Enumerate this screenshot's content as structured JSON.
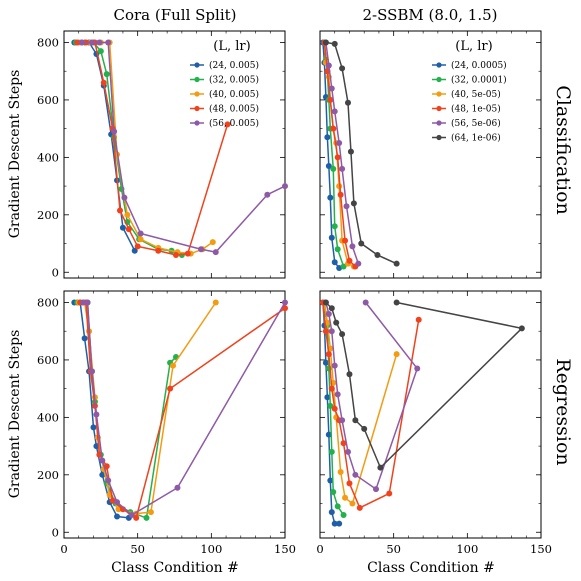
{
  "figure": {
    "col_titles": [
      "Cora (Full Split)",
      "2-SSBM (8.0, 1.5)"
    ],
    "row_titles": [
      "Classification",
      "Regression"
    ],
    "xlabel": "Class Condition #",
    "ylabel": "Gradient Descent Steps",
    "legend_title": "(L, lr)"
  },
  "chart_data": [
    {
      "type": "line",
      "title": "Cora (Full Split)",
      "row": "Classification",
      "xlabel": "",
      "ylabel": "Gradient Descent Steps",
      "xlim": [
        0,
        150
      ],
      "ylim": [
        -20,
        840
      ],
      "xticks": [
        0,
        50,
        100,
        150
      ],
      "yticks": [
        0,
        200,
        400,
        600,
        800
      ],
      "legend_title": "(L, lr)",
      "legend_position": "top-right",
      "series": [
        {
          "name": "(24, 0.005)",
          "color": "#1f5fa8",
          "x": [
            7,
            12,
            17,
            22,
            27,
            32,
            36,
            40,
            48
          ],
          "y": [
            800,
            800,
            800,
            760,
            650,
            480,
            320,
            155,
            75
          ]
        },
        {
          "name": "(32, 0.005)",
          "color": "#22b14c",
          "x": [
            8,
            14,
            20,
            25,
            29,
            34,
            39,
            43,
            51,
            64,
            73,
            80
          ],
          "y": [
            800,
            800,
            800,
            770,
            690,
            470,
            290,
            175,
            115,
            80,
            75,
            60
          ]
        },
        {
          "name": "(40, 0.005)",
          "color": "#f39c12",
          "x": [
            10,
            18,
            25,
            31,
            36,
            43,
            52,
            64,
            77,
            86,
            94,
            101
          ],
          "y": [
            800,
            800,
            800,
            800,
            410,
            200,
            115,
            85,
            70,
            65,
            80,
            105
          ]
        },
        {
          "name": "(48, 0.005)",
          "color": "#f0421c",
          "x": [
            9,
            15,
            21,
            27,
            33,
            38,
            44,
            50,
            64,
            76,
            84,
            111
          ],
          "y": [
            800,
            800,
            800,
            660,
            500,
            215,
            150,
            90,
            75,
            60,
            65,
            515
          ]
        },
        {
          "name": "(56, 0.005)",
          "color": "#8e5aa6",
          "x": [
            12,
            19,
            24,
            30,
            34,
            41,
            52,
            93,
            103,
            138,
            150
          ],
          "y": [
            800,
            800,
            800,
            800,
            490,
            260,
            135,
            80,
            70,
            270,
            300
          ]
        }
      ]
    },
    {
      "type": "line",
      "title": "2-SSBM (8.0, 1.5)",
      "row": "Classification",
      "xlabel": "",
      "ylabel": "",
      "xlim": [
        0,
        150
      ],
      "ylim": [
        -20,
        840
      ],
      "xticks": [
        0,
        50,
        100,
        150
      ],
      "yticks": [
        0,
        200,
        400,
        600,
        800
      ],
      "legend_title": "(L, lr)",
      "legend_position": "top-right",
      "series": [
        {
          "name": "(24, 0.0005)",
          "color": "#1f5fa8",
          "x": [
            2,
            3,
            4,
            5,
            6,
            7,
            8,
            10,
            13
          ],
          "y": [
            800,
            730,
            610,
            470,
            370,
            260,
            120,
            35,
            15
          ]
        },
        {
          "name": "(32, 0.0001)",
          "color": "#22b14c",
          "x": [
            3,
            4,
            5,
            6,
            7,
            9,
            10,
            12,
            16
          ],
          "y": [
            800,
            740,
            700,
            600,
            500,
            360,
            160,
            80,
            20
          ]
        },
        {
          "name": "(40, 5e-05)",
          "color": "#f39c12",
          "x": [
            3,
            4,
            6,
            7,
            9,
            11,
            13,
            15,
            19,
            23
          ],
          "y": [
            800,
            730,
            680,
            600,
            500,
            450,
            300,
            110,
            30,
            20
          ]
        },
        {
          "name": "(48, 1e-05)",
          "color": "#f0421c",
          "x": [
            3,
            5,
            7,
            9,
            12,
            14,
            17,
            20,
            24
          ],
          "y": [
            800,
            700,
            600,
            500,
            400,
            270,
            110,
            40,
            20
          ]
        },
        {
          "name": "(56, 5e-06)",
          "color": "#8e5aa6",
          "x": [
            4,
            6,
            8,
            10,
            13,
            15,
            18,
            22,
            26
          ],
          "y": [
            800,
            720,
            640,
            560,
            450,
            360,
            230,
            90,
            30
          ]
        },
        {
          "name": "(64, 1e-06)",
          "color": "#444444",
          "x": [
            4,
            10,
            15,
            19,
            21,
            23,
            28,
            39,
            52
          ],
          "y": [
            800,
            795,
            710,
            590,
            420,
            240,
            100,
            60,
            30
          ]
        }
      ]
    },
    {
      "type": "line",
      "title": "",
      "row": "Regression",
      "xlabel": "Class Condition #",
      "ylabel": "Gradient Descent Steps",
      "xlim": [
        0,
        150
      ],
      "ylim": [
        -20,
        840
      ],
      "xticks": [
        0,
        50,
        100,
        150
      ],
      "yticks": [
        0,
        200,
        400,
        600,
        800
      ],
      "series": [
        {
          "name": "(24, 0.005)",
          "color": "#1f5fa8",
          "x": [
            7,
            11,
            14,
            17,
            20,
            22,
            26,
            31,
            36,
            44
          ],
          "y": [
            800,
            800,
            675,
            560,
            365,
            300,
            200,
            105,
            55,
            50
          ]
        },
        {
          "name": "(32, 0.005)",
          "color": "#22b14c",
          "x": [
            9,
            13,
            16,
            19,
            21,
            25,
            29,
            35,
            45,
            56,
            72,
            76
          ],
          "y": [
            800,
            800,
            800,
            560,
            455,
            270,
            170,
            100,
            70,
            50,
            590,
            610
          ]
        },
        {
          "name": "(40, 0.005)",
          "color": "#f39c12",
          "x": [
            10,
            14,
            17,
            21,
            23,
            27,
            31,
            37,
            49,
            59,
            74,
            103
          ],
          "y": [
            800,
            800,
            700,
            470,
            330,
            220,
            130,
            80,
            65,
            70,
            580,
            800
          ]
        },
        {
          "name": "(48, 0.005)",
          "color": "#f0421c",
          "x": [
            11,
            15,
            18,
            21,
            24,
            29,
            33,
            40,
            49,
            72,
            150
          ],
          "y": [
            800,
            800,
            560,
            440,
            270,
            230,
            110,
            80,
            50,
            500,
            780
          ]
        },
        {
          "name": "(56, 0.005)",
          "color": "#8e5aa6",
          "x": [
            13,
            16,
            19,
            22,
            26,
            30,
            36,
            46,
            77,
            150
          ],
          "y": [
            800,
            800,
            560,
            410,
            250,
            180,
            105,
            60,
            155,
            800
          ]
        }
      ]
    },
    {
      "type": "line",
      "title": "",
      "row": "Regression",
      "xlabel": "Class Condition #",
      "ylabel": "",
      "xlim": [
        0,
        150
      ],
      "ylim": [
        -20,
        840
      ],
      "xticks": [
        0,
        50,
        100,
        150
      ],
      "yticks": [
        0,
        200,
        400,
        600,
        800
      ],
      "series": [
        {
          "name": "(24, 0.0005)",
          "color": "#1f5fa8",
          "x": [
            2,
            3,
            4,
            5,
            6,
            7,
            8,
            10,
            13
          ],
          "y": [
            800,
            720,
            590,
            470,
            340,
            180,
            70,
            30,
            30
          ]
        },
        {
          "name": "(32, 0.0001)",
          "color": "#22b14c",
          "x": [
            3,
            4,
            5,
            6,
            7,
            8,
            9,
            12,
            16
          ],
          "y": [
            800,
            760,
            720,
            570,
            440,
            280,
            140,
            90,
            60
          ]
        },
        {
          "name": "(40, 5e-05)",
          "color": "#f39c12",
          "x": [
            3,
            5,
            7,
            9,
            11,
            14,
            17,
            22,
            52
          ],
          "y": [
            800,
            730,
            640,
            520,
            400,
            210,
            120,
            100,
            620
          ]
        },
        {
          "name": "(48, 1e-05)",
          "color": "#f0421c",
          "x": [
            2,
            4,
            6,
            8,
            10,
            13,
            16,
            20,
            27,
            47,
            67
          ],
          "y": [
            800,
            700,
            620,
            500,
            430,
            390,
            310,
            170,
            85,
            135,
            740
          ]
        },
        {
          "name": "(56, 5e-06)",
          "color": "#8e5aa6",
          "x": [
            4,
            6,
            8,
            10,
            12,
            15,
            19,
            24,
            38,
            66,
            31
          ],
          "y": [
            800,
            760,
            700,
            580,
            480,
            390,
            280,
            200,
            150,
            570,
            800
          ]
        },
        {
          "name": "(64, 1e-06)",
          "color": "#444444",
          "x": [
            4,
            8,
            11,
            15,
            20,
            24,
            30,
            41,
            137,
            52
          ],
          "y": [
            800,
            780,
            730,
            690,
            550,
            390,
            360,
            225,
            710,
            800
          ]
        }
      ]
    }
  ]
}
